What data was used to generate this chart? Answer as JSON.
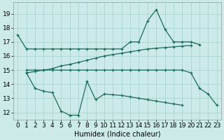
{
  "bg_color": "#cceae7",
  "grid_color": "#aad4d0",
  "line_color": "#1a6b5a",
  "xlabel": "Humidex (Indice chaleur)",
  "xlabel_fontsize": 7,
  "tick_fontsize": 6.5,
  "ylim": [
    11.5,
    19.8
  ],
  "xlim": [
    -0.5,
    23.5
  ],
  "yticks": [
    12,
    13,
    14,
    15,
    16,
    17,
    18,
    19
  ],
  "xticks": [
    0,
    1,
    2,
    3,
    4,
    5,
    6,
    7,
    8,
    9,
    10,
    11,
    12,
    13,
    14,
    15,
    16,
    17,
    18,
    19,
    20,
    21,
    22,
    23
  ],
  "line1_x": [
    0,
    1,
    2,
    3,
    4,
    5,
    6,
    7,
    8,
    9,
    10,
    11,
    12,
    13,
    14,
    15,
    16,
    17,
    18,
    19,
    20,
    21
  ],
  "line1_y": [
    17.5,
    16.5,
    16.5,
    16.5,
    16.5,
    16.5,
    16.5,
    16.5,
    16.5,
    16.5,
    16.5,
    16.5,
    16.5,
    17.0,
    17.0,
    18.5,
    19.3,
    17.9,
    17.0,
    17.0,
    17.0,
    16.8
  ],
  "line2_x": [
    1,
    2,
    3,
    4,
    5,
    6,
    7,
    8,
    9,
    10,
    11,
    12,
    13,
    14,
    15,
    16,
    17,
    18,
    19,
    20,
    21,
    22,
    23
  ],
  "line2_y": [
    15.0,
    15.0,
    15.0,
    15.0,
    15.0,
    15.0,
    15.0,
    15.0,
    15.0,
    15.0,
    15.0,
    15.0,
    15.0,
    15.0,
    15.0,
    15.0,
    15.0,
    15.0,
    15.0,
    14.8,
    13.7,
    13.3,
    12.5
  ],
  "line3_x": [
    1,
    2,
    3,
    4,
    5,
    6,
    7,
    8,
    9,
    10,
    11,
    12,
    13,
    14,
    15,
    16,
    17,
    18,
    19,
    20
  ],
  "line3_y": [
    14.8,
    14.9,
    15.0,
    15.1,
    15.3,
    15.4,
    15.55,
    15.7,
    15.85,
    16.0,
    16.1,
    16.2,
    16.3,
    16.4,
    16.5,
    16.55,
    16.6,
    16.65,
    16.7,
    16.75
  ],
  "line4_x": [
    1,
    2,
    3,
    4,
    5,
    6,
    7,
    8,
    9,
    10,
    11,
    12,
    13,
    14,
    15,
    16,
    17,
    18,
    19
  ],
  "line4_y": [
    14.8,
    13.7,
    13.5,
    13.4,
    12.1,
    11.8,
    11.8,
    14.2,
    12.9,
    13.3,
    13.25,
    13.2,
    13.1,
    13.0,
    12.9,
    12.8,
    12.7,
    12.6,
    12.5
  ]
}
